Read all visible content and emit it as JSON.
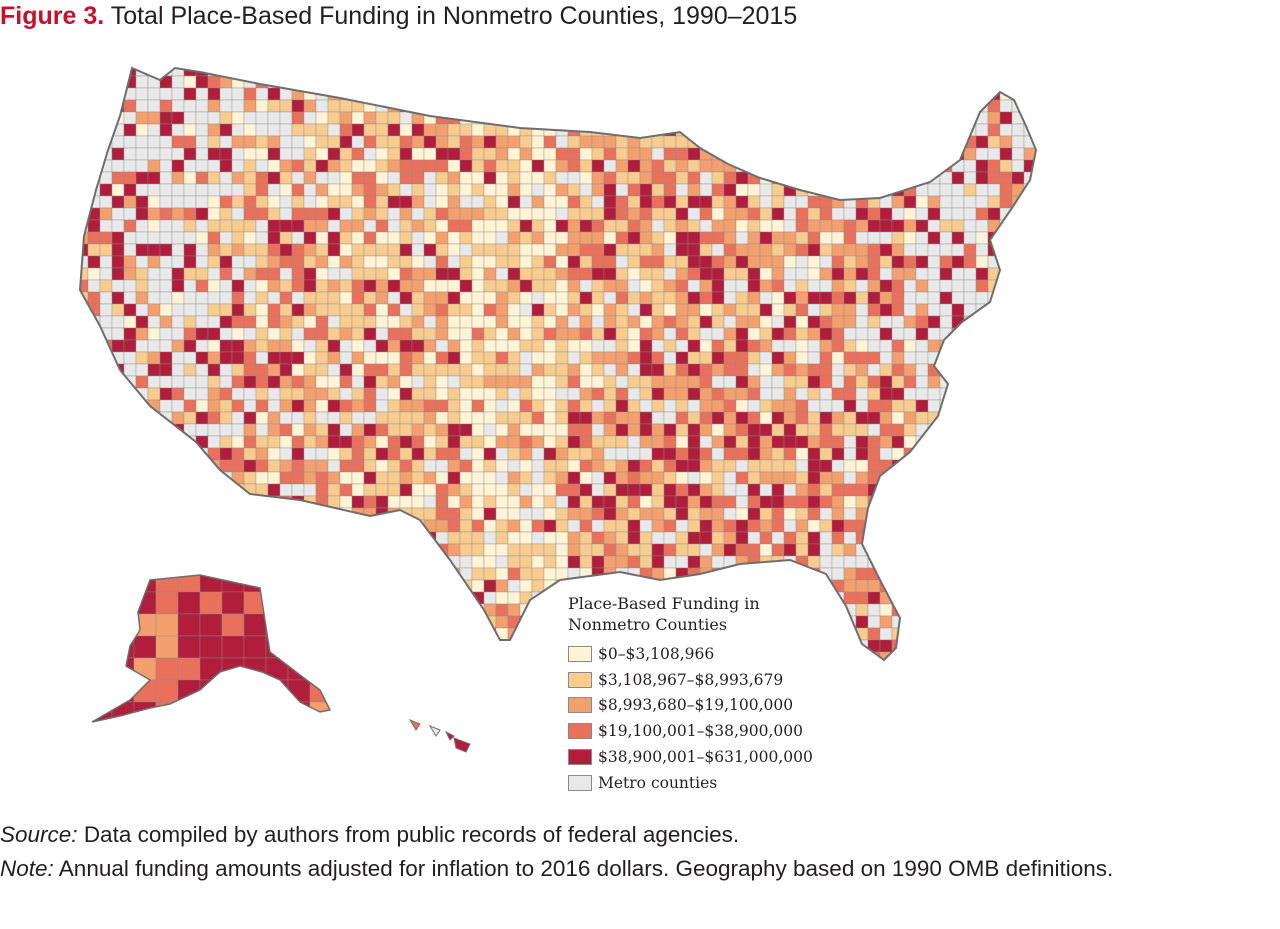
{
  "figure": {
    "number": "Figure 3.",
    "title": "Total Place-Based Funding in Nonmetro Counties, 1990–2015"
  },
  "legend": {
    "title": "Place-Based Funding in Nonmetro Counties",
    "items": [
      {
        "label": "$0–$3,108,966",
        "color": "#fff4d6"
      },
      {
        "label": "$3,108,967–$8,993,679",
        "color": "#f8cc8f"
      },
      {
        "label": "$8,993,680–$19,100,000",
        "color": "#f3a06e"
      },
      {
        "label": "$19,100,001–$38,900,000",
        "color": "#e9705a"
      },
      {
        "label": "$38,900,001–$631,000,000",
        "color": "#b01e3c"
      },
      {
        "label": "Metro counties",
        "color": "#e9e9ea"
      }
    ]
  },
  "notes": {
    "source_label": "Source:",
    "source_text": "Data compiled by authors from public records of federal agencies.",
    "note_label": "Note:",
    "note_text": "Annual funding amounts adjusted for inflation to 2016 dollars. Geography based on 1990 OMB definitions."
  },
  "map": {
    "regions": [
      "contiguous-us",
      "alaska",
      "hawaii"
    ]
  }
}
